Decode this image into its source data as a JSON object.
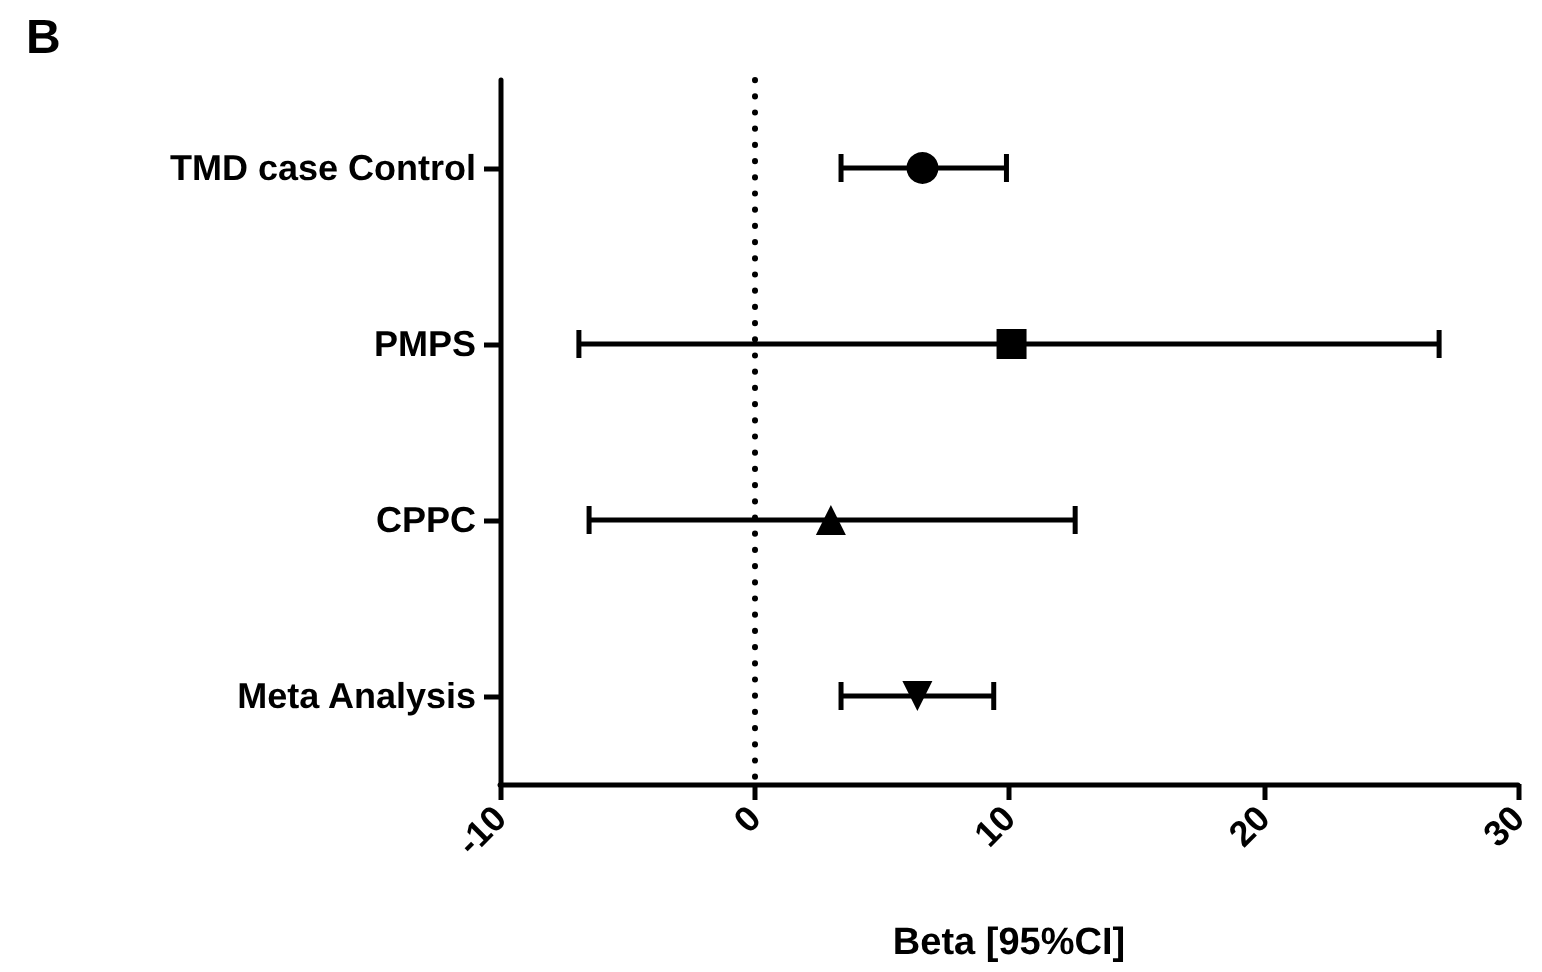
{
  "chart_data": {
    "type": "scatter",
    "title": "B",
    "xlabel": "Beta [95%CI]",
    "orientation": "horizontal",
    "categories": [
      "TMD case Control",
      "PMPS",
      "CPPC",
      "Meta Analysis"
    ],
    "series": [
      {
        "color": "#000000",
        "marker": "circle",
        "values": [
          6.6,
          null,
          null,
          null
        ],
        "errors": [
          [
            3.4,
            9.9
          ],
          null,
          null,
          null
        ]
      },
      {
        "color": "#000000",
        "marker": "square",
        "values": [
          null,
          10.1,
          null,
          null
        ],
        "errors": [
          null,
          [
            -6.9,
            26.9
          ],
          null,
          null
        ]
      },
      {
        "color": "#000000",
        "marker": "triangle",
        "values": [
          null,
          null,
          3.0,
          null
        ],
        "errors": [
          null,
          null,
          [
            -6.5,
            12.6
          ],
          null
        ]
      },
      {
        "color": "#000000",
        "marker": "triangle-down",
        "values": [
          null,
          null,
          null,
          6.4
        ],
        "errors": [
          null,
          null,
          null,
          [
            3.4,
            9.4
          ]
        ]
      }
    ],
    "xlim": [
      -10,
      30
    ],
    "xticks": [
      -10,
      0,
      10,
      20,
      30
    ],
    "ref_lines": [
      {
        "axis": "x",
        "value": 0,
        "line_style": "dotted",
        "color": "#000000"
      }
    ]
  }
}
